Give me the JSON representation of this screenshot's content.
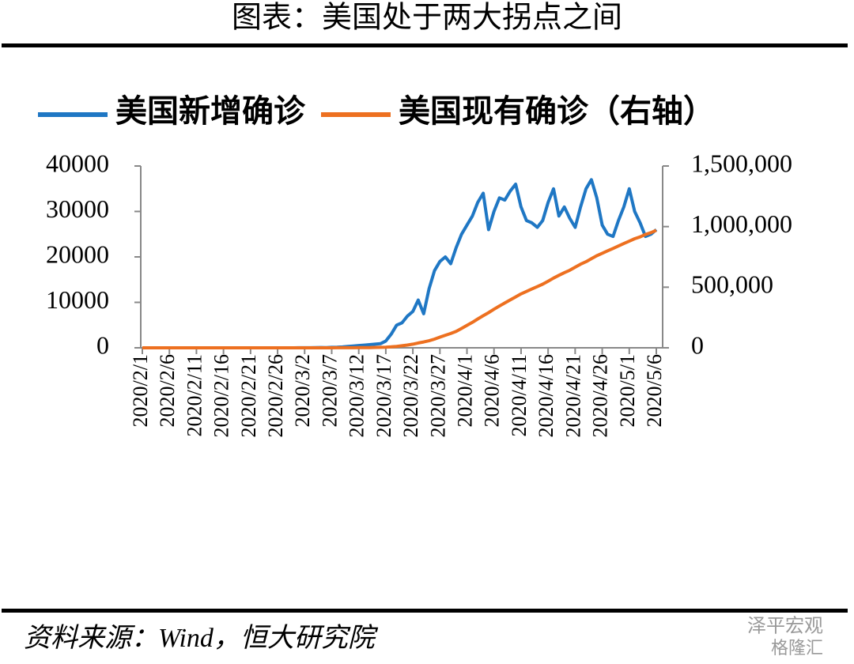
{
  "chart_data": {
    "type": "line",
    "title": "图表：美国处于两大拐点之间",
    "source": "资料来源：Wind，恒大研究院",
    "watermarks": [
      "泽平宏观",
      "格隆汇"
    ],
    "categories": [
      "2020/2/1",
      null,
      null,
      null,
      null,
      "2020/2/6",
      null,
      null,
      null,
      null,
      "2020/2/11",
      null,
      null,
      null,
      null,
      "2020/2/16",
      null,
      null,
      null,
      null,
      "2020/2/21",
      null,
      null,
      null,
      null,
      "2020/2/26",
      null,
      null,
      null,
      null,
      "2020/3/2",
      null,
      null,
      null,
      null,
      "2020/3/7",
      null,
      null,
      null,
      null,
      "2020/3/12",
      null,
      null,
      null,
      null,
      "2020/3/17",
      null,
      null,
      null,
      null,
      "2020/3/22",
      null,
      null,
      null,
      null,
      "2020/3/27",
      null,
      null,
      null,
      null,
      "2020/4/1",
      null,
      null,
      null,
      null,
      "2020/4/6",
      null,
      null,
      null,
      null,
      "2020/4/11",
      null,
      null,
      null,
      null,
      "2020/4/16",
      null,
      null,
      null,
      null,
      "2020/4/21",
      null,
      null,
      null,
      null,
      "2020/4/26",
      null,
      null,
      null,
      null,
      "2020/5/1",
      null,
      null,
      null,
      null,
      "2020/5/6"
    ],
    "series": [
      {
        "name": "美国新增确诊",
        "color": "#1f77c4",
        "axis": "y",
        "values": [
          0,
          0,
          0,
          0,
          0,
          0,
          0,
          0,
          0,
          0,
          0,
          0,
          0,
          0,
          0,
          0,
          0,
          0,
          0,
          0,
          0,
          0,
          0,
          0,
          0,
          0,
          0,
          0,
          0,
          10,
          20,
          25,
          30,
          70,
          60,
          100,
          120,
          200,
          300,
          400,
          500,
          600,
          700,
          800,
          900,
          1500,
          3000,
          5000,
          5500,
          7000,
          8000,
          10500,
          7500,
          13000,
          17000,
          19000,
          20000,
          18500,
          22000,
          25000,
          27000,
          29000,
          32000,
          34000,
          26000,
          30000,
          33000,
          32500,
          34500,
          36000,
          31000,
          28000,
          27500,
          26500,
          28000,
          32000,
          35000,
          29000,
          31000,
          28500,
          26500,
          31000,
          35000,
          37000,
          33000,
          27000,
          25000,
          24500,
          28000,
          31000,
          35000,
          30000,
          27500,
          24500,
          25000,
          26000
        ]
      },
      {
        "name": "美国现有确诊（右轴）",
        "color": "#ed7020",
        "axis": "y2",
        "values": [
          0,
          0,
          0,
          0,
          0,
          0,
          0,
          0,
          0,
          0,
          0,
          0,
          0,
          0,
          0,
          0,
          0,
          0,
          0,
          0,
          0,
          0,
          0,
          0,
          0,
          0,
          0,
          0,
          0,
          60,
          80,
          100,
          130,
          180,
          220,
          300,
          400,
          500,
          700,
          900,
          1200,
          1700,
          2200,
          3000,
          4000,
          5500,
          8000,
          12000,
          17000,
          23000,
          30000,
          40000,
          48000,
          58000,
          72000,
          88000,
          104000,
          118000,
          135000,
          160000,
          185000,
          210000,
          238000,
          265000,
          290000,
          318000,
          345000,
          370000,
          395000,
          420000,
          445000,
          465000,
          485000,
          505000,
          525000,
          550000,
          575000,
          598000,
          620000,
          640000,
          665000,
          690000,
          710000,
          735000,
          760000,
          780000,
          800000,
          820000,
          840000,
          860000,
          880000,
          900000,
          915000,
          935000,
          950000,
          970000
        ]
      }
    ],
    "ylim": [
      0,
      40000
    ],
    "yticks": [
      0,
      10000,
      20000,
      30000,
      40000
    ],
    "y2lim": [
      0,
      1500000
    ],
    "y2ticks": [
      0,
      {
        "value": 500000,
        "label": "500,000"
      },
      {
        "value": 1000000,
        "label": "1,000,000"
      },
      {
        "value": 1500000,
        "label": "1,500,000"
      }
    ]
  }
}
